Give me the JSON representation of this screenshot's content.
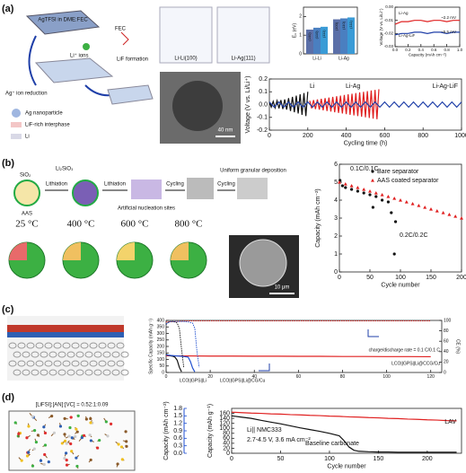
{
  "labels": [
    "(a)",
    "(b)",
    "(c)",
    "(d)"
  ],
  "schematics": {
    "a": [
      "AgTFSI in DME:FEC",
      "Li⁺ ions",
      "FEC",
      "LiF formation",
      "Ag⁺ ion reduction",
      "Ag nanoparticle",
      "LiF-rich interphase",
      "Li",
      "Li-Li(100)",
      "Li-Ag(111)",
      "40 nm"
    ],
    "b": [
      "SiO₂",
      "AAS",
      "Lithiation",
      "Li₂SiO₃",
      "Lithiation",
      "Artificial nucleation sites",
      "Cycling",
      "Cycling",
      "Uniform granular deposition",
      "25 °C",
      "400 °C",
      "600 °C",
      "800 °C",
      "10 μm"
    ],
    "d": [
      "[LiFSI]:[AN]:[VC] = 0.52:1:0.09"
    ]
  },
  "chart_data": [
    {
      "type": "bar",
      "ylabel": "E₀ (eV)",
      "categories": [
        "Li-Li",
        "Li-Ag"
      ],
      "series": [
        {
          "name": "(100)",
          "color": "#5b6fa8",
          "values": [
            1.3,
            1.85
          ]
        },
        {
          "name": "(110)",
          "color": "#4a7fc0",
          "values": [
            1.4,
            1.9
          ]
        },
        {
          "name": "(111)",
          "color": "#3a9bd6",
          "values": [
            1.45,
            1.95
          ]
        }
      ],
      "ylim": [
        0,
        2.5
      ],
      "yticks": [
        0,
        1,
        2
      ]
    },
    {
      "type": "line",
      "xlabel": "Capacity (mAh cm⁻²)",
      "ylabel": "Voltage (V vs. Li/Li⁺)",
      "series": [
        {
          "name": "Li-Ag",
          "color": "#e02020",
          "x": [
            0,
            0.1,
            0.2,
            0.3,
            0.4,
            0.5,
            0.6,
            0.7,
            0.8,
            0.9,
            1
          ],
          "values": [
            -0.013,
            -0.011,
            -0.011,
            -0.01,
            -0.01,
            -0.011,
            -0.01,
            -0.01,
            -0.011,
            -0.01,
            -0.01
          ]
        },
        {
          "name": "Li-Ag-LiF",
          "color": "#1f3fa8",
          "x": [
            0,
            0.1,
            0.2,
            0.3,
            0.4,
            0.5,
            0.6,
            0.7,
            0.8,
            0.9,
            1
          ],
          "values": [
            -0.021,
            -0.02,
            -0.02,
            -0.019,
            -0.019,
            -0.02,
            -0.019,
            -0.019,
            -0.02,
            -0.019,
            -0.019
          ]
        }
      ],
      "annotations": [
        "~2.2 mV",
        "~5.5 mV"
      ],
      "xlim": [
        0,
        1
      ],
      "xticks": [
        {
          "value": 0,
          "label": "0.0"
        },
        0.2,
        0.4,
        0.6,
        0.8,
        {
          "value": 1,
          "label": "1.0"
        }
      ],
      "ylim": [
        -0.03,
        0
      ],
      "yticks": [
        -0.03,
        -0.02,
        -0.01,
        {
          "value": 0,
          "label": "0.00"
        }
      ]
    },
    {
      "type": "line",
      "xlabel": "Cycling time (h)",
      "ylabel": "Voltage (V vs. Li/Li⁺)",
      "series": [
        {
          "name": "Li",
          "color": "#111111",
          "x": [
            0,
            10,
            20,
            30,
            40,
            50,
            60,
            70,
            80,
            90,
            100,
            110,
            120,
            130,
            140,
            150,
            160,
            170,
            180,
            190,
            200
          ],
          "values": [
            0.02,
            -0.02,
            0.025,
            -0.025,
            0.03,
            -0.03,
            0.035,
            -0.035,
            0.04,
            -0.04,
            0.05,
            -0.05,
            0.06,
            -0.06,
            0.07,
            -0.07,
            0.08,
            -0.08,
            0.09,
            -0.09,
            0.1
          ]
        },
        {
          "name": "Li-Ag",
          "color": "#e02020",
          "x": [
            210,
            220,
            230,
            240,
            250,
            260,
            270,
            280,
            290,
            300,
            310,
            320,
            330,
            340,
            350,
            360,
            370,
            380,
            390,
            400,
            410,
            420,
            430,
            440,
            450,
            460,
            470,
            480,
            490,
            500,
            510,
            520,
            530,
            540,
            550,
            560,
            570
          ],
          "values": [
            0.03,
            -0.03,
            0.035,
            -0.035,
            0.04,
            -0.04,
            0.045,
            -0.045,
            0.05,
            -0.05,
            0.055,
            -0.055,
            0.06,
            -0.06,
            0.065,
            -0.065,
            0.07,
            -0.07,
            0.075,
            -0.075,
            0.08,
            -0.08,
            0.085,
            -0.085,
            0.09,
            -0.09,
            0.095,
            -0.095,
            0.1,
            -0.1,
            0.105,
            -0.105,
            0.11,
            -0.11,
            0.115,
            -0.115,
            0.12
          ]
        },
        {
          "name": "Li-Ag-LiF",
          "color": "#1f3fa8",
          "x": [
            0,
            25,
            50,
            75,
            100,
            125,
            150,
            175,
            200,
            225,
            250,
            275,
            300,
            325,
            350,
            375,
            400,
            425,
            450,
            475,
            500,
            525,
            550,
            575,
            600,
            625,
            650,
            675,
            700,
            725,
            750,
            775,
            800,
            825,
            850,
            875,
            900,
            925,
            950,
            975,
            1000
          ],
          "values": [
            0.02,
            -0.02,
            0.02,
            -0.02,
            0.02,
            -0.02,
            0.02,
            -0.02,
            0.02,
            -0.02,
            0.02,
            -0.02,
            0.02,
            -0.02,
            0.02,
            -0.02,
            0.02,
            -0.02,
            0.02,
            -0.02,
            0.02,
            -0.02,
            0.02,
            -0.02,
            0.02,
            -0.02,
            0.02,
            -0.02,
            0.02,
            -0.02,
            0.02,
            -0.02,
            0.02,
            -0.02,
            0.02,
            -0.02,
            0.02,
            -0.02,
            0.02,
            -0.02,
            0.02
          ]
        }
      ],
      "xlim": [
        0,
        1000
      ],
      "xticks": [
        0,
        200,
        400,
        600,
        800,
        1000
      ],
      "ylim": [
        -0.2,
        0.2
      ],
      "yticks": [
        -0.2,
        -0.1,
        {
          "value": 0,
          "label": "0.0"
        },
        0.1,
        0.2
      ]
    },
    {
      "type": "scatter",
      "xlabel": "Cycle number",
      "ylabel": "Capacity (mAh cm⁻²)",
      "series": [
        {
          "name": "Bare separator",
          "color": "#111111",
          "marker": "circle",
          "x": [
            1,
            5,
            10,
            20,
            30,
            40,
            50,
            55,
            60,
            70,
            80,
            85,
            90,
            92
          ],
          "values": [
            5.1,
            4.8,
            4.7,
            4.6,
            4.5,
            4.4,
            4.3,
            3.6,
            4.2,
            4.0,
            3.9,
            3.3,
            1.0,
            2.8
          ]
        },
        {
          "name": "AAS coated separator",
          "color": "#e02020",
          "marker": "triangle",
          "x": [
            0,
            10,
            20,
            30,
            40,
            50,
            60,
            70,
            80,
            90,
            100,
            110,
            120,
            130,
            140,
            150,
            160,
            170,
            180,
            190,
            200
          ],
          "values": [
            5.0,
            4.9,
            4.8,
            4.7,
            4.6,
            4.5,
            4.4,
            4.3,
            4.2,
            4.1,
            4.0,
            3.9,
            3.8,
            3.7,
            3.6,
            3.5,
            3.4,
            3.3,
            3.2,
            3.1,
            3.0
          ]
        }
      ],
      "annotations": [
        "0.1C/0.1C",
        "0.2C/0.2C"
      ],
      "xlim": [
        0,
        200
      ],
      "xticks": [
        0,
        50,
        100,
        150,
        200
      ],
      "ylim": [
        0,
        6
      ],
      "yticks": [
        0,
        1,
        2,
        3,
        4,
        5,
        6
      ]
    },
    {
      "type": "line",
      "ylabel": "Specific Capacity (mAh g⁻¹)",
      "y2label": "CE (%)",
      "series": [
        {
          "name": "LCO||GPS||Li@CCG/Cu",
          "color": "#e02020",
          "x": [
            0,
            10,
            20,
            30,
            40,
            50,
            60,
            70,
            80,
            90,
            100,
            110,
            120
          ],
          "values": [
            128,
            127,
            126,
            126,
            125,
            125,
            124,
            124,
            123,
            123,
            122,
            122,
            121
          ]
        },
        {
          "color": "#e02020",
          "axis": "y2",
          "x": [
            0,
            10,
            20,
            30,
            40,
            50,
            60,
            70,
            80,
            90,
            100,
            110,
            120
          ],
          "values": [
            97,
            99,
            99,
            99,
            99,
            99,
            99,
            99,
            99,
            99,
            99,
            99,
            99
          ]
        },
        {
          "name": "LCO||GPS||Li",
          "color": "#111111",
          "x": [
            0,
            1,
            2,
            3,
            4,
            5,
            6,
            7
          ],
          "values": [
            140,
            132,
            128,
            125,
            118,
            95,
            40,
            5
          ]
        },
        {
          "color": "#111111",
          "axis": "y2",
          "x": [
            0,
            1,
            2,
            3,
            4,
            5,
            6,
            7,
            8
          ],
          "values": [
            92,
            97,
            98,
            98,
            97,
            95,
            85,
            45,
            10
          ]
        },
        {
          "name": "LCO||GPS||Li@CG/Cu",
          "color": "#1f4fd0",
          "x": [
            0,
            2,
            4,
            6,
            8,
            10,
            11,
            12,
            13
          ],
          "values": [
            135,
            131,
            128,
            126,
            123,
            118,
            85,
            35,
            5
          ]
        },
        {
          "color": "#1f4fd0",
          "axis": "y2",
          "x": [
            0,
            2,
            4,
            6,
            8,
            10,
            12,
            13,
            14,
            15
          ],
          "values": [
            93,
            98,
            98,
            98,
            98,
            97,
            95,
            85,
            40,
            10
          ]
        }
      ],
      "annotations": [
        "charge/discharge rate = 0.1 C/0.1 C"
      ],
      "xlim": [
        0,
        125
      ],
      "xticks": [
        0,
        20,
        40,
        60,
        80,
        100,
        120
      ],
      "ylim": [
        0,
        400
      ],
      "yticks": [
        0,
        50,
        100,
        150,
        200,
        250,
        300,
        350,
        400
      ],
      "y2lim": [
        0,
        100
      ],
      "y2ticks": [
        0,
        20,
        40,
        60,
        80,
        100
      ]
    },
    {
      "type": "line",
      "xlabel": "Cycle number",
      "ylabel": "Capacity (mAh g⁻¹)",
      "y2label": "Capacity (mAh cm⁻²)",
      "y2color": "#1f4fd0",
      "series": [
        {
          "name": "LAV",
          "color": "#e02020",
          "x": [
            0,
            10,
            20,
            30,
            40,
            50,
            60,
            70,
            80,
            90,
            100,
            110,
            120,
            130,
            140,
            150,
            160,
            170,
            180,
            190,
            200,
            210,
            220,
            230
          ],
          "values": [
            165,
            163,
            161,
            160,
            158,
            157,
            155,
            154,
            152,
            151,
            149,
            148,
            146,
            145,
            143,
            142,
            140,
            139,
            137,
            136,
            134,
            133,
            131,
            130
          ]
        },
        {
          "name": "Baseline carbonate",
          "color": "#111111",
          "x": [
            0,
            10,
            20,
            30,
            40,
            50,
            60,
            70,
            80,
            90,
            100,
            110,
            115,
            120,
            125,
            130,
            140,
            150,
            160,
            170,
            180,
            190,
            200,
            210,
            220,
            230
          ],
          "values": [
            150,
            145,
            140,
            132,
            125,
            118,
            110,
            102,
            95,
            88,
            80,
            70,
            50,
            25,
            12,
            8,
            6,
            5,
            5,
            4,
            4,
            4,
            4,
            4,
            4,
            4
          ]
        }
      ],
      "annotations": [
        "Li|| NMC333",
        "2.7-4.5 V, 3.6 mA cm⁻²"
      ],
      "xlim": [
        0,
        235
      ],
      "xticks": [
        0,
        50,
        100,
        150,
        200
      ],
      "ylim": [
        0,
        180
      ],
      "yticks": [
        0,
        20,
        40,
        60,
        80,
        100,
        120,
        140,
        160
      ],
      "y2lim": [
        0,
        1.8
      ],
      "y2ticks": [
        {
          "value": 0,
          "label": "0.0"
        },
        0.3,
        0.6,
        0.9,
        1.2,
        1.5,
        1.8
      ]
    }
  ]
}
